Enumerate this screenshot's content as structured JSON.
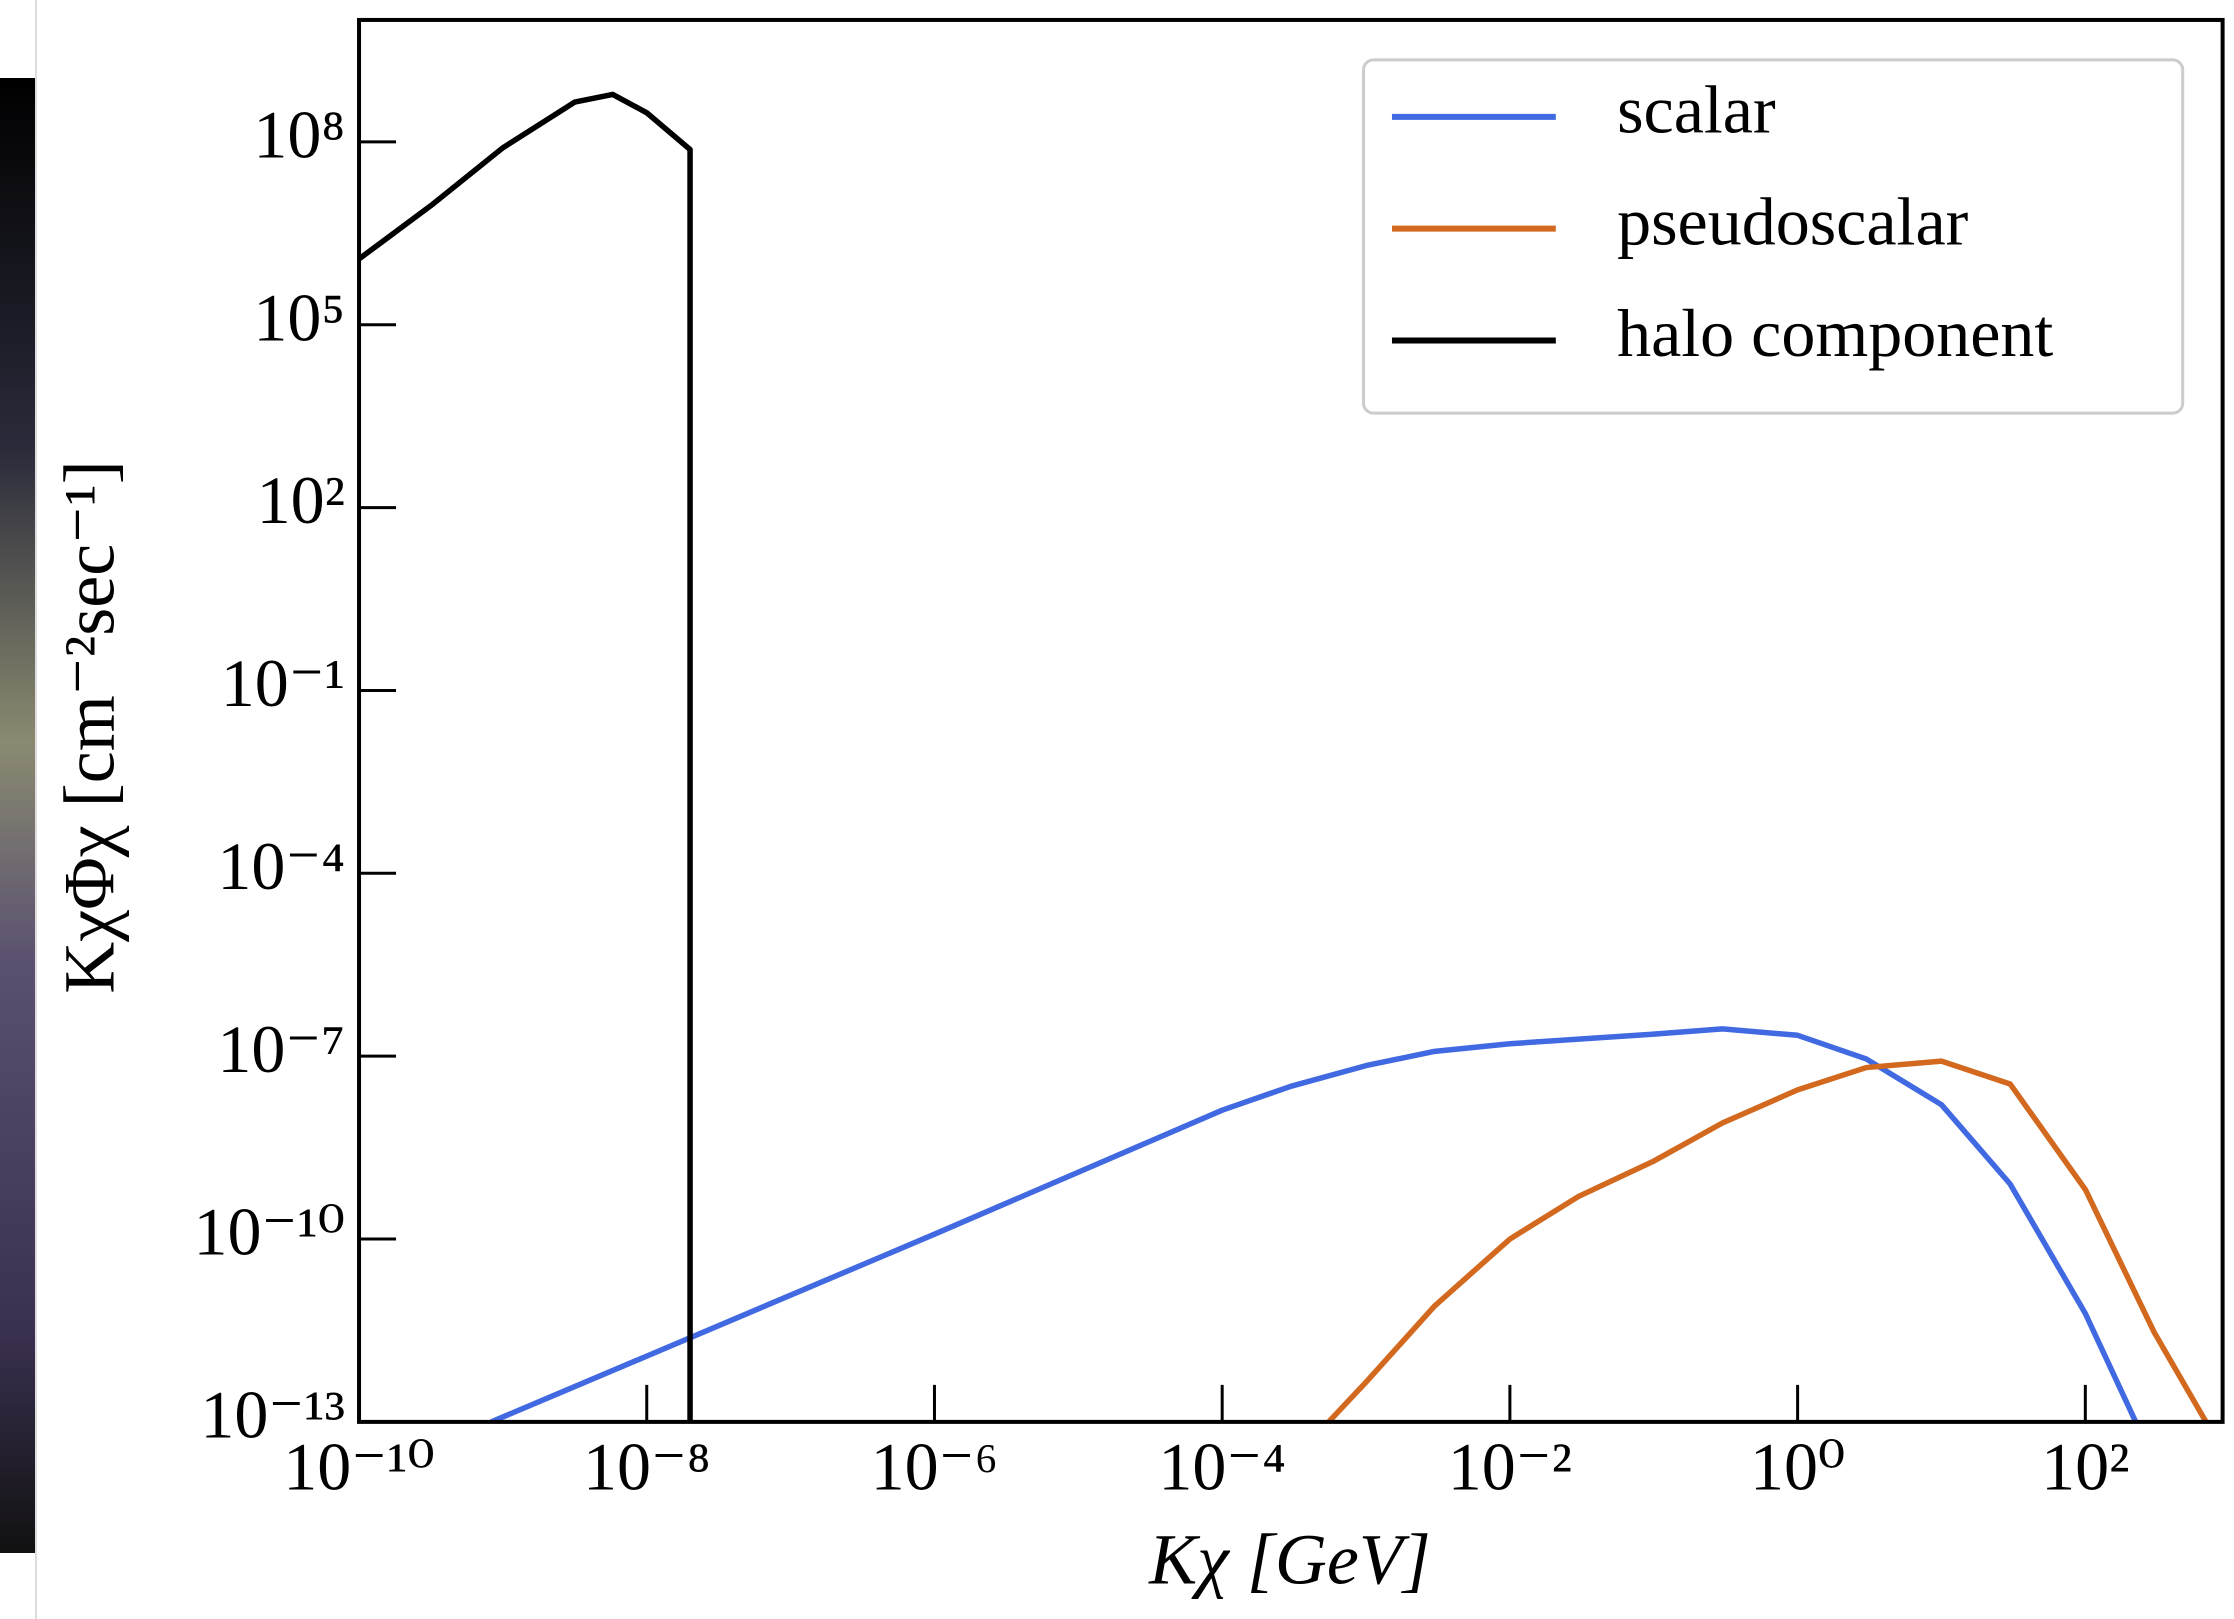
{
  "chart_data": {
    "type": "line",
    "x_label": "Kχ [GeV]",
    "y_label": "KχΦχ [cm⁻²sec⁻¹]",
    "log_x": true,
    "log_y": true,
    "legend": "upper right",
    "xlim": [
      1e-10,
      900
    ],
    "ylim": [
      1e-13,
      10000000000.0
    ],
    "xticks": [
      {
        "value": 1e-10,
        "label": "10⁻¹⁰"
      },
      {
        "value": 1e-08,
        "label": "10⁻⁸"
      },
      {
        "value": 1e-06,
        "label": "10⁻⁶"
      },
      {
        "value": 0.0001,
        "label": "10⁻⁴"
      },
      {
        "value": 0.01,
        "label": "10⁻²"
      },
      {
        "value": 1,
        "label": "10⁰"
      },
      {
        "value": 100,
        "label": "10²"
      }
    ],
    "yticks": [
      {
        "value": 1e-13,
        "label": "10⁻¹³"
      },
      {
        "value": 1e-10,
        "label": "10⁻¹⁰"
      },
      {
        "value": 1e-07,
        "label": "10⁻⁷"
      },
      {
        "value": 0.0001,
        "label": "10⁻⁴"
      },
      {
        "value": 0.1,
        "label": "10⁻¹"
      },
      {
        "value": 100,
        "label": "10²"
      },
      {
        "value": 100000,
        "label": "10⁵"
      },
      {
        "value": 100000000,
        "label": "10⁸"
      }
    ],
    "series": [
      {
        "name": "scalar",
        "color": "#4169e1",
        "x": [
          8.3e-10,
          1e-08,
          1e-06,
          0.0001,
          0.0003,
          0.001,
          0.003,
          0.01,
          0.1,
          0.3,
          1,
          3,
          10,
          30,
          100,
          224
        ],
        "values": [
          1e-13,
          1.2e-12,
          1.2e-10,
          1.3e-08,
          3.2e-08,
          7e-08,
          1.2e-07,
          1.6e-07,
          2.3e-07,
          2.8e-07,
          2.2e-07,
          9e-08,
          1.6e-08,
          8e-10,
          6e-12,
          1e-13
        ]
      },
      {
        "name": "pseudoscalar",
        "color": "#d2691e",
        "x": [
          0.00055,
          0.001,
          0.003,
          0.01,
          0.03,
          0.1,
          0.3,
          1,
          3,
          10,
          30,
          100,
          300,
          690
        ],
        "values": [
          1e-13,
          4.5e-13,
          8e-12,
          1e-10,
          5e-10,
          1.9e-09,
          8e-09,
          2.8e-08,
          6.5e-08,
          8.3e-08,
          3.5e-08,
          6.5e-10,
          3e-12,
          1e-13
        ]
      },
      {
        "name": "halo component",
        "color": "#000000",
        "x": [
          1e-10,
          3.16e-10,
          1e-09,
          3.16e-09,
          5.8e-09,
          1e-08,
          2e-08,
          2e-08
        ],
        "values": [
          1200000,
          9000000,
          80000000,
          450000000,
          600000000,
          300000000,
          75000000,
          1e-13
        ]
      }
    ]
  }
}
